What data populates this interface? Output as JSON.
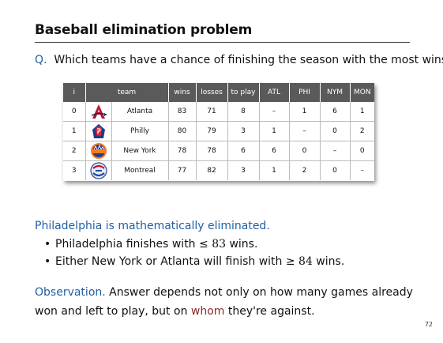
{
  "title": "Baseball elimination problem",
  "question": {
    "label": "Q.",
    "text": "Which teams have a chance of finishing the season with the most wins?"
  },
  "table": {
    "headers": [
      "i",
      "team",
      "wins",
      "losses",
      "to play",
      "ATL",
      "PHI",
      "NYM",
      "MON"
    ],
    "rows": [
      {
        "i": "0",
        "team": "Atlanta",
        "logo": "braves-logo-icon",
        "wins": "83",
        "losses": "71",
        "to_play": "8",
        "atl": "–",
        "phi": "1",
        "nym": "6",
        "mon": "1"
      },
      {
        "i": "1",
        "team": "Philly",
        "logo": "phillies-logo-icon",
        "wins": "80",
        "losses": "79",
        "to_play": "3",
        "atl": "1",
        "phi": "–",
        "nym": "0",
        "mon": "2"
      },
      {
        "i": "2",
        "team": "New York",
        "logo": "mets-logo-icon",
        "wins": "78",
        "losses": "78",
        "to_play": "6",
        "atl": "6",
        "phi": "0",
        "nym": "–",
        "mon": "0"
      },
      {
        "i": "3",
        "team": "Montreal",
        "logo": "expos-logo-icon",
        "wins": "77",
        "losses": "82",
        "to_play": "3",
        "atl": "1",
        "phi": "2",
        "nym": "0",
        "mon": "–"
      }
    ]
  },
  "elimination": {
    "heading": "Philadelphia is mathematically eliminated.",
    "bullet1": {
      "prefix": "Philadelphia finishes with ≤ ",
      "num": "83",
      "suffix": " wins."
    },
    "bullet2": {
      "prefix": "Either New York or Atlanta will finish with ≥ ",
      "num": "84",
      "suffix": " wins."
    }
  },
  "observation": {
    "label": "Observation.",
    "text_before": " Answer depends not only on how many games already won and left to play, but on ",
    "highlight": "whom",
    "text_after": " they're against."
  },
  "page_number": "72"
}
